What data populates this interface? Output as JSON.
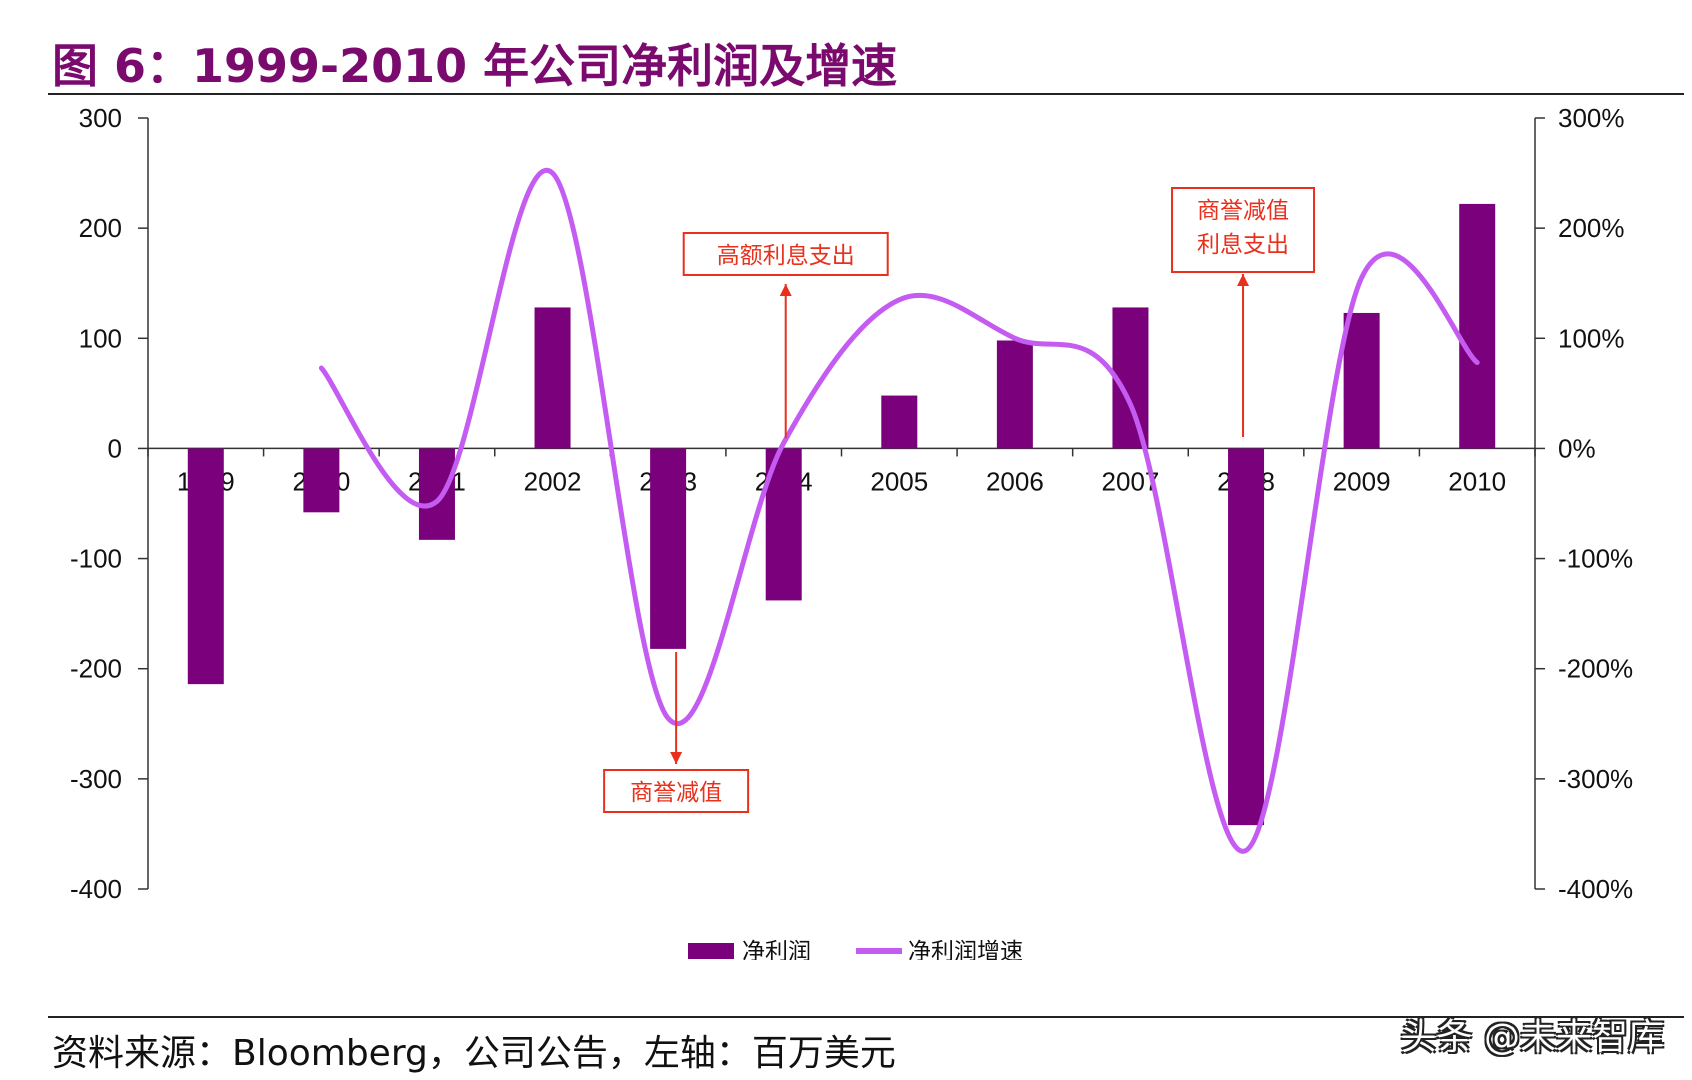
{
  "page": {
    "title": "图 6：1999-2010 年公司净利润及增速",
    "footer": "资料来源：Bloomberg，公司公告，左轴：百万美元",
    "watermark": "头条 @未来智库"
  },
  "colors": {
    "bar": "#7b007b",
    "line": "#c45cf2",
    "annotation": "#e8301c",
    "title": "#7a0a6e"
  },
  "chart_data": {
    "type": "bar+line",
    "title": "1999-2010 年公司净利润及增速",
    "categories": [
      "1999",
      "2000",
      "2001",
      "2002",
      "2003",
      "2004",
      "2005",
      "2006",
      "2007",
      "2008",
      "2009",
      "2010"
    ],
    "series": [
      {
        "name": "净利润",
        "type": "bar",
        "axis": "left",
        "values": [
          -214,
          -58,
          -83,
          128,
          -182,
          -138,
          48,
          98,
          128,
          -342,
          123,
          222
        ]
      },
      {
        "name": "净利润增速",
        "type": "line",
        "axis": "right",
        "unit": "%",
        "values": [
          null,
          73,
          -48,
          250,
          -245,
          5,
          135,
          100,
          40,
          -365,
          155,
          78
        ]
      }
    ],
    "y_left": {
      "range": [
        -400,
        300
      ],
      "ticks": [
        "300",
        "200",
        "100",
        "0",
        "-100",
        "-200",
        "-300",
        "-400"
      ]
    },
    "y_right": {
      "range": [
        -400,
        300
      ],
      "ticks": [
        "300%",
        "200%",
        "100%",
        "0%",
        "-100%",
        "-200%",
        "-300%",
        "-400%"
      ]
    },
    "annotations": [
      {
        "id": "a2004",
        "lines": [
          "高额利息支出"
        ],
        "category": "2004"
      },
      {
        "id": "a2003",
        "lines": [
          "商誉减值"
        ],
        "category": "2003"
      },
      {
        "id": "a2008",
        "lines": [
          "商誉减值",
          "利息支出"
        ],
        "category": "2008"
      }
    ],
    "legend": {
      "position": "bottom",
      "items": [
        "净利润",
        "净利润增速"
      ]
    }
  }
}
